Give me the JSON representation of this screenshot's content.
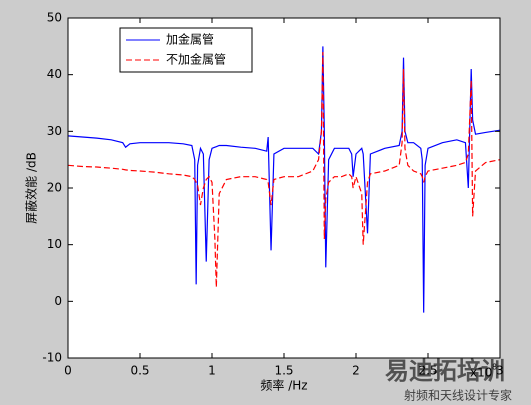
{
  "chart_data": {
    "type": "line",
    "x_label": "频率 /Hz",
    "y_label": "屏蔽效能 /dB",
    "x_multiplier": "x10",
    "x_multiplier_exponent": "8",
    "x": [
      0,
      0.1,
      0.2,
      0.3,
      0.38,
      0.4,
      0.43,
      0.5,
      0.6,
      0.7,
      0.8,
      0.86,
      0.88,
      0.89,
      0.9,
      0.92,
      0.94,
      0.96,
      0.98,
      1.0,
      1.02,
      1.03,
      1.05,
      1.1,
      1.2,
      1.3,
      1.38,
      1.39,
      1.41,
      1.43,
      1.5,
      1.6,
      1.7,
      1.74,
      1.76,
      1.77,
      1.78,
      1.79,
      1.81,
      1.85,
      1.9,
      1.95,
      1.97,
      1.98,
      2.0,
      2.04,
      2.05,
      2.08,
      2.1,
      2.2,
      2.3,
      2.32,
      2.33,
      2.34,
      2.36,
      2.4,
      2.45,
      2.46,
      2.47,
      2.48,
      2.5,
      2.6,
      2.7,
      2.76,
      2.78,
      2.8,
      2.81,
      2.83,
      2.9,
      3.0
    ],
    "series": [
      {
        "name": "加金属管",
        "color": "#0000ff",
        "dash": false,
        "values": [
          29.2,
          29,
          28.8,
          28.5,
          28,
          27.2,
          27.8,
          28,
          28,
          28,
          27.8,
          27.5,
          25,
          3,
          24,
          27,
          26,
          7,
          25,
          27,
          27.2,
          27.3,
          27.5,
          27.5,
          27.2,
          27,
          26.5,
          29,
          9,
          26,
          27,
          27,
          27,
          26,
          30,
          45,
          30,
          6,
          25,
          27,
          27,
          27,
          26,
          22,
          26,
          27,
          26,
          12,
          26,
          27,
          27.5,
          30,
          43,
          30,
          28,
          28,
          27,
          25,
          -2,
          24,
          27,
          28,
          28.5,
          28,
          20,
          41,
          32,
          29.5,
          29.8,
          30.2
        ]
      },
      {
        "name": "不加金属管",
        "color": "#ff0000",
        "dash": true,
        "values": [
          24,
          23.8,
          23.7,
          23.5,
          23.3,
          23.2,
          23.1,
          23,
          22.8,
          22.5,
          22.3,
          22,
          21.5,
          21,
          20.5,
          17,
          20,
          21.5,
          22,
          21,
          11,
          2.5,
          19,
          21.5,
          22,
          22,
          21.5,
          21,
          17,
          21.5,
          22,
          22,
          23,
          25,
          30,
          44,
          11,
          18,
          21,
          22,
          22,
          22.5,
          22,
          20,
          22,
          19,
          10,
          21,
          22.5,
          23,
          24,
          28,
          41,
          27,
          24,
          23,
          22.5,
          22,
          21,
          22,
          23,
          23.5,
          24,
          24.5,
          26,
          39,
          15,
          23,
          24.5,
          25
        ]
      }
    ],
    "xlim": [
      0,
      3
    ],
    "xticks": [
      0,
      0.5,
      1,
      1.5,
      2,
      2.5,
      3
    ],
    "ylim": [
      -10,
      50
    ],
    "yticks": [
      -10,
      0,
      10,
      20,
      30,
      40,
      50
    ],
    "grid": false,
    "legend": "upper-left"
  },
  "watermark": {
    "title": "易迪拓培训",
    "subtitle": "射频和天线设计专家"
  }
}
